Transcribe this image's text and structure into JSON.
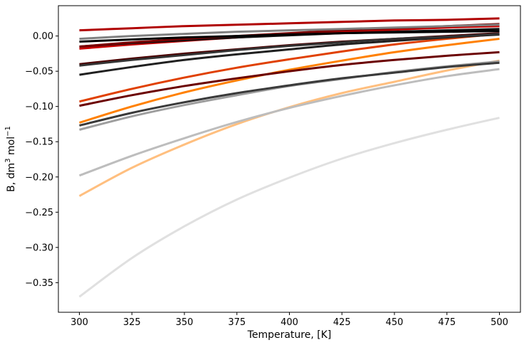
{
  "chart_data": {
    "type": "line",
    "title": "",
    "xlabel": "Temperature, [K]",
    "ylabel": {
      "prefix": "B, dm",
      "sup1": "3",
      "middle": " mol",
      "sup2": "−1"
    },
    "xlim": [
      290,
      510
    ],
    "ylim": [
      -0.392,
      0.043
    ],
    "x_ticks": [
      300,
      325,
      350,
      375,
      400,
      425,
      450,
      475,
      500
    ],
    "y_ticks": [
      0.0,
      -0.05,
      -0.1,
      -0.15,
      -0.2,
      -0.25,
      -0.3,
      -0.35
    ],
    "y_tick_labels": [
      "0.00",
      "−0.05",
      "−0.10",
      "−0.15",
      "−0.20",
      "−0.25",
      "−0.30",
      "−0.35"
    ],
    "grid": false,
    "legend": "none",
    "x": [
      300,
      325,
      350,
      375,
      400,
      425,
      450,
      475,
      500
    ],
    "series": [
      {
        "color": "#e0e0e0",
        "values": [
          -0.37,
          -0.315,
          -0.27,
          -0.232,
          -0.201,
          -0.174,
          -0.152,
          -0.133,
          -0.116
        ]
      },
      {
        "color": "#ffbf7f",
        "values": [
          -0.227,
          -0.187,
          -0.154,
          -0.125,
          -0.101,
          -0.081,
          -0.065,
          -0.049,
          -0.035
        ]
      },
      {
        "color": "#bdbdbd",
        "values": [
          -0.198,
          -0.17,
          -0.145,
          -0.122,
          -0.102,
          -0.085,
          -0.07,
          -0.057,
          -0.047
        ]
      },
      {
        "color": "#9e9e9e",
        "values": [
          -0.133,
          -0.114,
          -0.098,
          -0.084,
          -0.071,
          -0.061,
          -0.051,
          -0.043,
          -0.036
        ]
      },
      {
        "color": "#3a3a3a",
        "values": [
          -0.127,
          -0.109,
          -0.094,
          -0.081,
          -0.07,
          -0.06,
          -0.052,
          -0.044,
          -0.038
        ]
      },
      {
        "color": "#ff8000",
        "values": [
          -0.123,
          -0.1,
          -0.08,
          -0.063,
          -0.048,
          -0.035,
          -0.023,
          -0.013,
          -0.004
        ]
      },
      {
        "color": "#e04000",
        "values": [
          -0.093,
          -0.075,
          -0.059,
          -0.045,
          -0.033,
          -0.022,
          -0.012,
          -0.004,
          0.003
        ]
      },
      {
        "color": "#6b0000",
        "values": [
          -0.099,
          -0.084,
          -0.071,
          -0.06,
          -0.05,
          -0.041,
          -0.034,
          -0.028,
          -0.023
        ]
      },
      {
        "color": "#202020",
        "values": [
          -0.055,
          -0.044,
          -0.034,
          -0.026,
          -0.019,
          -0.012,
          -0.007,
          -0.002,
          0.002
        ]
      },
      {
        "color": "#4a0000",
        "values": [
          -0.04,
          -0.032,
          -0.025,
          -0.019,
          -0.013,
          -0.008,
          -0.004,
          0.0,
          0.004
        ]
      },
      {
        "color": "#333333",
        "values": [
          -0.042,
          -0.034,
          -0.027,
          -0.02,
          -0.014,
          -0.009,
          -0.004,
          -0.001,
          0.003
        ]
      },
      {
        "color": "#c80000",
        "values": [
          -0.018,
          -0.012,
          -0.007,
          -0.002,
          0.002,
          0.006,
          0.009,
          0.012,
          0.014
        ]
      },
      {
        "color": "#111111",
        "values": [
          -0.015,
          -0.01,
          -0.006,
          -0.002,
          0.001,
          0.004,
          0.006,
          0.008,
          0.01
        ]
      },
      {
        "color": "#7a0000",
        "values": [
          -0.015,
          -0.009,
          -0.004,
          0.0,
          0.004,
          0.008,
          0.011,
          0.014,
          0.017
        ]
      },
      {
        "color": "#000000",
        "values": [
          -0.008,
          -0.005,
          -0.002,
          0.0,
          0.002,
          0.004,
          0.005,
          0.006,
          0.007
        ]
      },
      {
        "color": "#808080",
        "values": [
          -0.004,
          0.0,
          0.003,
          0.006,
          0.008,
          0.01,
          0.012,
          0.014,
          0.016
        ]
      },
      {
        "color": "#b00000",
        "values": [
          0.008,
          0.011,
          0.014,
          0.016,
          0.018,
          0.02,
          0.022,
          0.023,
          0.025
        ]
      }
    ]
  }
}
